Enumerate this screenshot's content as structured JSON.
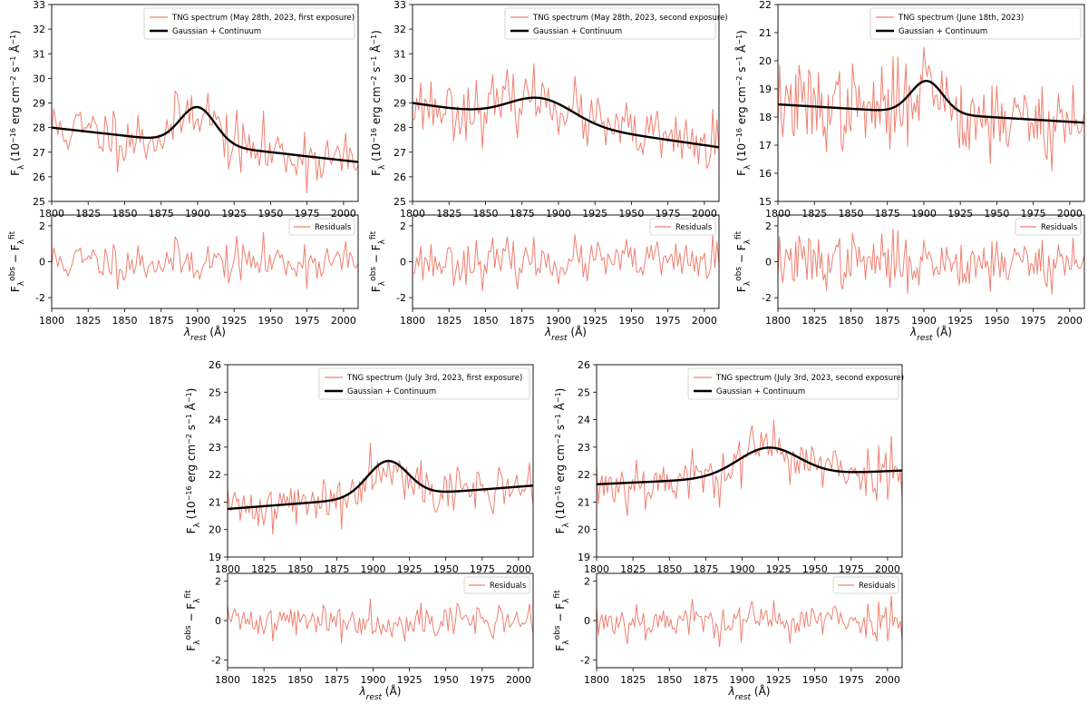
{
  "chart_data": [
    {
      "type": "line",
      "title": "",
      "xlabel": "λ_rest (Å)",
      "ylabel": "F_λ (10^-16 erg cm^-2 s^-1 Å^-1)",
      "xlim": [
        1800,
        2010
      ],
      "ylim": [
        25,
        33
      ],
      "xticks": [
        1800,
        1825,
        1850,
        1875,
        1900,
        1925,
        1950,
        1975,
        2000
      ],
      "yticks": [
        25,
        26,
        27,
        28,
        29,
        30,
        31,
        32,
        33
      ],
      "legend": "upper-right",
      "series": [
        {
          "name": "TNG spectrum (May 28th, 2023, first exposure)",
          "color": "#f08070",
          "samples": 150,
          "noise_sigma": 0.6,
          "seed": 11
        },
        {
          "name": "Gaussian + Continuum",
          "color": "#000000",
          "continuum": [
            [
              1800,
              28.0
            ],
            [
              2010,
              26.6
            ]
          ],
          "gaussian": {
            "amplitude": 1.5,
            "center": 1900,
            "sigma": 12
          }
        }
      ],
      "residuals": {
        "name": "Residuals",
        "ylabel": "F_λ^obs − F_λ^fit",
        "ylim": [
          -2.6,
          2.6
        ],
        "yticks": [
          -2,
          0,
          2
        ],
        "legend": "upper-right"
      }
    },
    {
      "type": "line",
      "title": "",
      "xlabel": "λ_rest (Å)",
      "ylabel": "F_λ (10^-16 erg cm^-2 s^-1 Å^-1)",
      "xlim": [
        1800,
        2010
      ],
      "ylim": [
        25,
        33
      ],
      "xticks": [
        1800,
        1825,
        1850,
        1875,
        1900,
        1925,
        1950,
        1975,
        2000
      ],
      "yticks": [
        25,
        26,
        27,
        28,
        29,
        30,
        31,
        32,
        33
      ],
      "legend": "upper-right",
      "series": [
        {
          "name": "TNG spectrum (May 28th, 2023, second exposure)",
          "color": "#f08070",
          "samples": 150,
          "noise_sigma": 0.6,
          "seed": 23
        },
        {
          "name": "Gaussian + Continuum",
          "color": "#000000",
          "continuum": [
            [
              1800,
              29.0
            ],
            [
              2010,
              27.2
            ]
          ],
          "gaussian": {
            "amplitude": 0.95,
            "center": 1888,
            "sigma": 22
          }
        }
      ],
      "residuals": {
        "name": "Residuals",
        "ylabel": "F_λ^obs − F_λ^fit",
        "ylim": [
          -2.6,
          2.6
        ],
        "yticks": [
          -2,
          0,
          2
        ],
        "legend": "upper-right"
      }
    },
    {
      "type": "line",
      "title": "",
      "xlabel": "λ_rest (Å)",
      "ylabel": "F_λ (10^-16 erg cm^-2 s^-1 Å^-1)",
      "xlim": [
        1800,
        2010
      ],
      "ylim": [
        15,
        22
      ],
      "xticks": [
        1800,
        1825,
        1850,
        1875,
        1900,
        1925,
        1950,
        1975,
        2000
      ],
      "yticks": [
        15,
        16,
        17,
        18,
        19,
        20,
        21,
        22
      ],
      "legend": "upper-right",
      "series": [
        {
          "name": "TNG spectrum (June 18th, 2023)",
          "color": "#f08070",
          "samples": 190,
          "noise_sigma": 0.75,
          "seed": 37
        },
        {
          "name": "Gaussian + Continuum",
          "color": "#000000",
          "continuum": [
            [
              1800,
              18.45
            ],
            [
              2010,
              17.8
            ]
          ],
          "gaussian": {
            "amplitude": 1.15,
            "center": 1902,
            "sigma": 11
          }
        }
      ],
      "residuals": {
        "name": "Residuals",
        "ylabel": "F_λ^obs − F_λ^fit",
        "ylim": [
          -2.6,
          2.6
        ],
        "yticks": [
          -2,
          0,
          2
        ],
        "legend": "upper-right"
      }
    },
    {
      "type": "line",
      "title": "",
      "xlabel": "λ_rest (Å)",
      "ylabel": "F_λ (10^-16 erg cm^-2 s^-1 Å^-1)",
      "xlim": [
        1800,
        2010
      ],
      "ylim": [
        19,
        26
      ],
      "xticks": [
        1800,
        1825,
        1850,
        1875,
        1900,
        1925,
        1950,
        1975,
        2000
      ],
      "yticks": [
        19,
        20,
        21,
        22,
        23,
        24,
        25,
        26
      ],
      "legend": "upper-right",
      "series": [
        {
          "name": "TNG spectrum (July 3rd, 2023, first exposure)",
          "color": "#f08070",
          "samples": 170,
          "noise_sigma": 0.45,
          "seed": 41
        },
        {
          "name": "Gaussian + Continuum",
          "color": "#000000",
          "continuum": [
            [
              1800,
              20.75
            ],
            [
              2010,
              21.6
            ]
          ],
          "gaussian": {
            "amplitude": 1.3,
            "center": 1910,
            "sigma": 14
          }
        }
      ],
      "residuals": {
        "name": "Residuals",
        "ylabel": "F_λ^obs − F_λ^fit",
        "ylim": [
          -2.4,
          2.4
        ],
        "yticks": [
          -2,
          0,
          2
        ],
        "legend": "upper-right"
      }
    },
    {
      "type": "line",
      "title": "",
      "xlabel": "λ_rest (Å)",
      "ylabel": "F_λ (10^-16 erg cm^-2 s^-1 Å^-1)",
      "xlim": [
        1800,
        2010
      ],
      "ylim": [
        19,
        26
      ],
      "xticks": [
        1800,
        1825,
        1850,
        1875,
        1900,
        1925,
        1950,
        1975,
        2000
      ],
      "yticks": [
        19,
        20,
        21,
        22,
        23,
        24,
        25,
        26
      ],
      "legend": "upper-right",
      "series": [
        {
          "name": "TNG spectrum (July 3rd, 2023, second exposure)",
          "color": "#f08070",
          "samples": 170,
          "noise_sigma": 0.5,
          "seed": 53
        },
        {
          "name": "Gaussian + Continuum",
          "color": "#000000",
          "continuum": [
            [
              1800,
              21.65
            ],
            [
              2010,
              22.15
            ]
          ],
          "gaussian": {
            "amplitude": 1.05,
            "center": 1918,
            "sigma": 21
          }
        }
      ],
      "residuals": {
        "name": "Residuals",
        "ylabel": "F_λ^obs − F_λ^fit",
        "ylim": [
          -2.4,
          2.4
        ],
        "yticks": [
          -2,
          0,
          2
        ],
        "legend": "upper-right"
      }
    }
  ]
}
